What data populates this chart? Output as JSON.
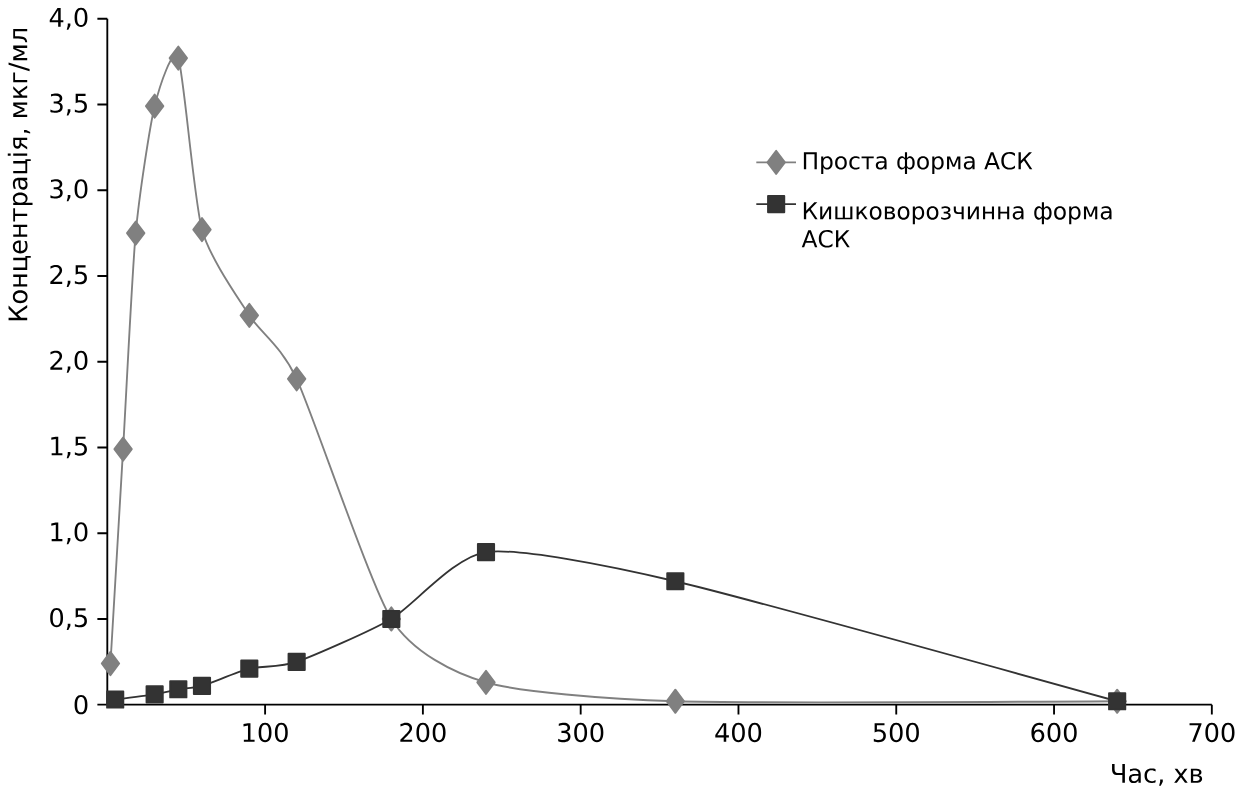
{
  "chart_data": {
    "type": "line",
    "xlabel": "Час, хв",
    "ylabel": "Концентрація, мкг/мл",
    "xlim": [
      0,
      700
    ],
    "xticks": [
      100,
      200,
      300,
      400,
      500,
      600,
      700
    ],
    "ylim": [
      0,
      4
    ],
    "yticks": [
      0,
      {
        "value": 0.5,
        "label": "0,5"
      },
      {
        "value": 1,
        "label": "1,0"
      },
      {
        "value": 1.5,
        "label": "1,5"
      },
      {
        "value": 2,
        "label": "2,0"
      },
      {
        "value": 2.5,
        "label": "2,5"
      },
      {
        "value": 3,
        "label": "3,0"
      },
      {
        "value": 3.5,
        "label": "3,5"
      },
      {
        "value": 4,
        "label": "4,0"
      }
    ],
    "grid": false,
    "legend": "top right",
    "series": [
      {
        "name": "Проста форма АСК",
        "color": "#808080",
        "marker": "diamond",
        "x": [
          2,
          10,
          18,
          30,
          45,
          60,
          90,
          120,
          180,
          240,
          360,
          640
        ],
        "values": [
          0.24,
          1.49,
          2.75,
          3.49,
          3.77,
          2.77,
          2.27,
          1.9,
          0.5,
          0.13,
          0.02,
          0.02
        ]
      },
      {
        "name": "Кишковорозчинна форма АСК",
        "color": "#333333",
        "marker": "square",
        "x": [
          5,
          30,
          45,
          60,
          90,
          120,
          180,
          240,
          360,
          640
        ],
        "values": [
          0.03,
          0.06,
          0.09,
          0.11,
          0.21,
          0.25,
          0.5,
          0.89,
          0.72,
          0.02
        ]
      }
    ]
  }
}
